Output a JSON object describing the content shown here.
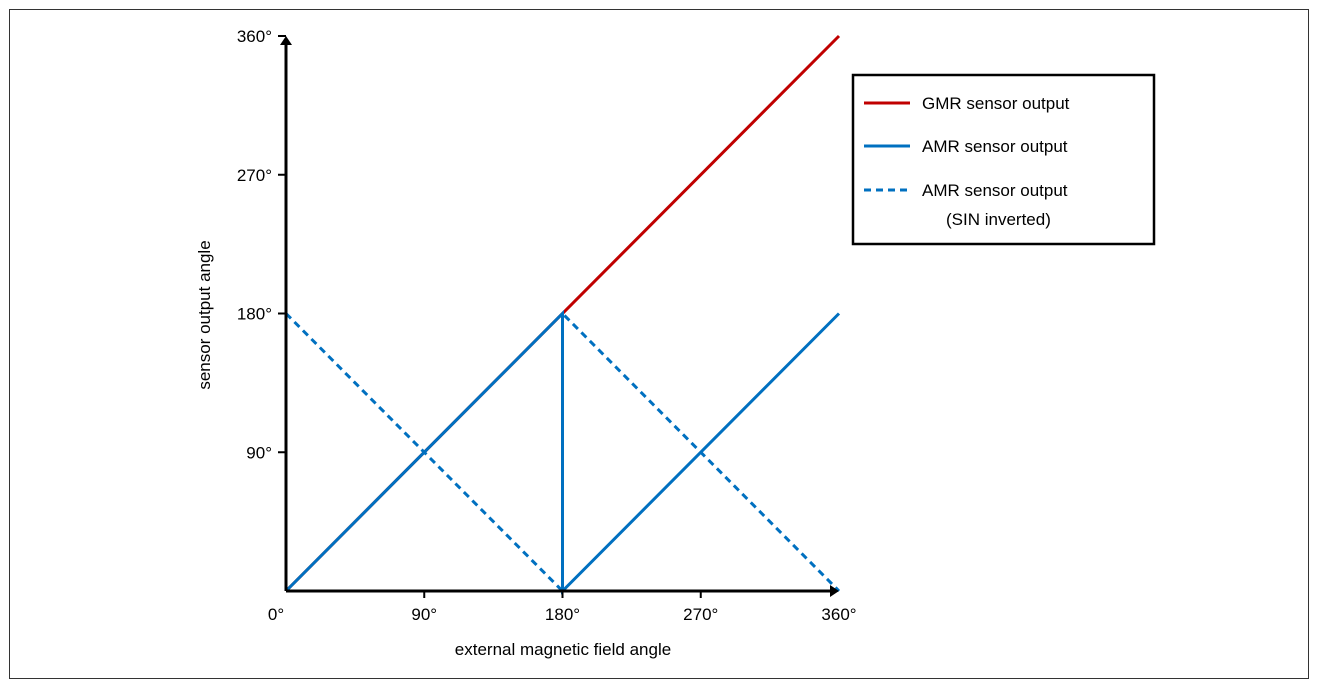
{
  "chart_data": {
    "type": "line",
    "xlabel": "external magnetic field angle",
    "ylabel": "sensor output angle",
    "xlim": [
      0,
      360
    ],
    "ylim": [
      0,
      360
    ],
    "x_ticks": [
      {
        "value": 0,
        "label": "0°"
      },
      {
        "value": 90,
        "label": "90°"
      },
      {
        "value": 180,
        "label": "180°"
      },
      {
        "value": 270,
        "label": "270°"
      },
      {
        "value": 360,
        "label": "360°"
      }
    ],
    "y_ticks": [
      {
        "value": 90,
        "label": "90°"
      },
      {
        "value": 180,
        "label": "180°"
      },
      {
        "value": 270,
        "label": "270°"
      },
      {
        "value": 360,
        "label": "360°"
      }
    ],
    "grid": false,
    "legend_position": "top-right",
    "series": [
      {
        "name": "GMR sensor output",
        "color": "#c00000",
        "style": "solid",
        "points": [
          [
            0,
            0
          ],
          [
            360,
            360
          ]
        ]
      },
      {
        "name": "AMR sensor output",
        "color": "#0070c0",
        "style": "solid",
        "points": [
          [
            0,
            0
          ],
          [
            180,
            180
          ],
          [
            180,
            0
          ],
          [
            360,
            180
          ]
        ]
      },
      {
        "name": "AMR sensor output",
        "name_line2": "(SIN inverted)",
        "color": "#0070c0",
        "style": "dashed",
        "points": [
          [
            0,
            180
          ],
          [
            180,
            0
          ],
          [
            180,
            180
          ],
          [
            360,
            0
          ]
        ]
      }
    ]
  }
}
